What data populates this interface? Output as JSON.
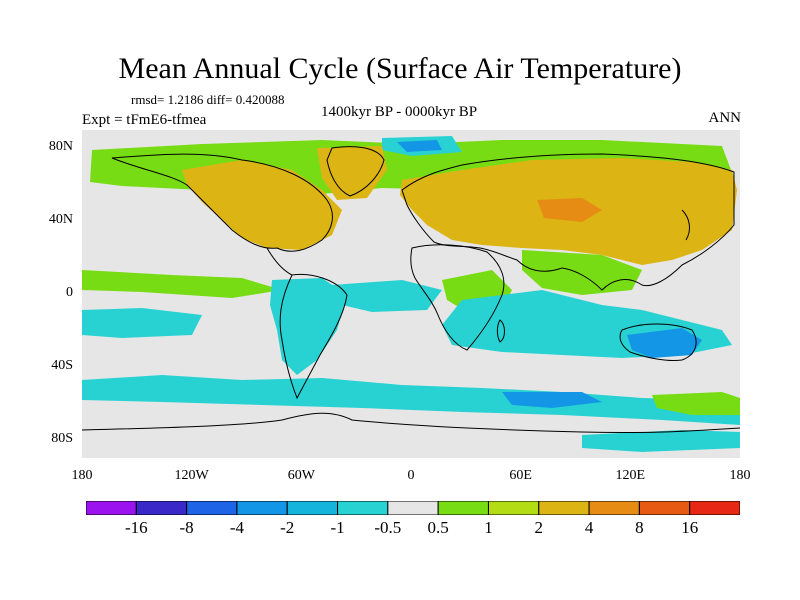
{
  "title": "Mean Annual Cycle (Surface Air Temperature)",
  "stats": "rmsd= 1.2186 diff= 0.420088",
  "experiment": "Expt = tFmE6-tfmea",
  "period": "1400kyr BP - 0000kyr BP",
  "season": "ANN",
  "lat_labels": [
    {
      "label": "80N",
      "lat": 80
    },
    {
      "label": "40N",
      "lat": 40
    },
    {
      "label": "0",
      "lat": 0
    },
    {
      "label": "40S",
      "lat": -40
    },
    {
      "label": "80S",
      "lat": -80
    }
  ],
  "lon_labels": [
    {
      "label": "180",
      "lon": -180
    },
    {
      "label": "120W",
      "lon": -120
    },
    {
      "label": "60W",
      "lon": -60
    },
    {
      "label": "0",
      "lon": 0
    },
    {
      "label": "60E",
      "lon": 60
    },
    {
      "label": "120E",
      "lon": 120
    },
    {
      "label": "180",
      "lon": 180
    }
  ],
  "colorbar": {
    "levels": [
      "-16",
      "-8",
      "-4",
      "-2",
      "-1",
      "-0.5",
      "0.5",
      "1",
      "2",
      "4",
      "8",
      "16"
    ],
    "colors": [
      "#9b14f0",
      "#3a28c8",
      "#1e64e6",
      "#1496e6",
      "#14b4dc",
      "#28d2d2",
      "#e6e6e6",
      "#78dc14",
      "#b4dc14",
      "#dcb414",
      "#e68c14",
      "#e65a14",
      "#e62814"
    ]
  },
  "colors": {
    "neutral": "#e6e6e6",
    "warm_orange": "#dcb414",
    "green": "#78dc14",
    "cyan": "#28d2d2",
    "light_blue": "#14b4dc",
    "mid_blue": "#1496e6"
  }
}
